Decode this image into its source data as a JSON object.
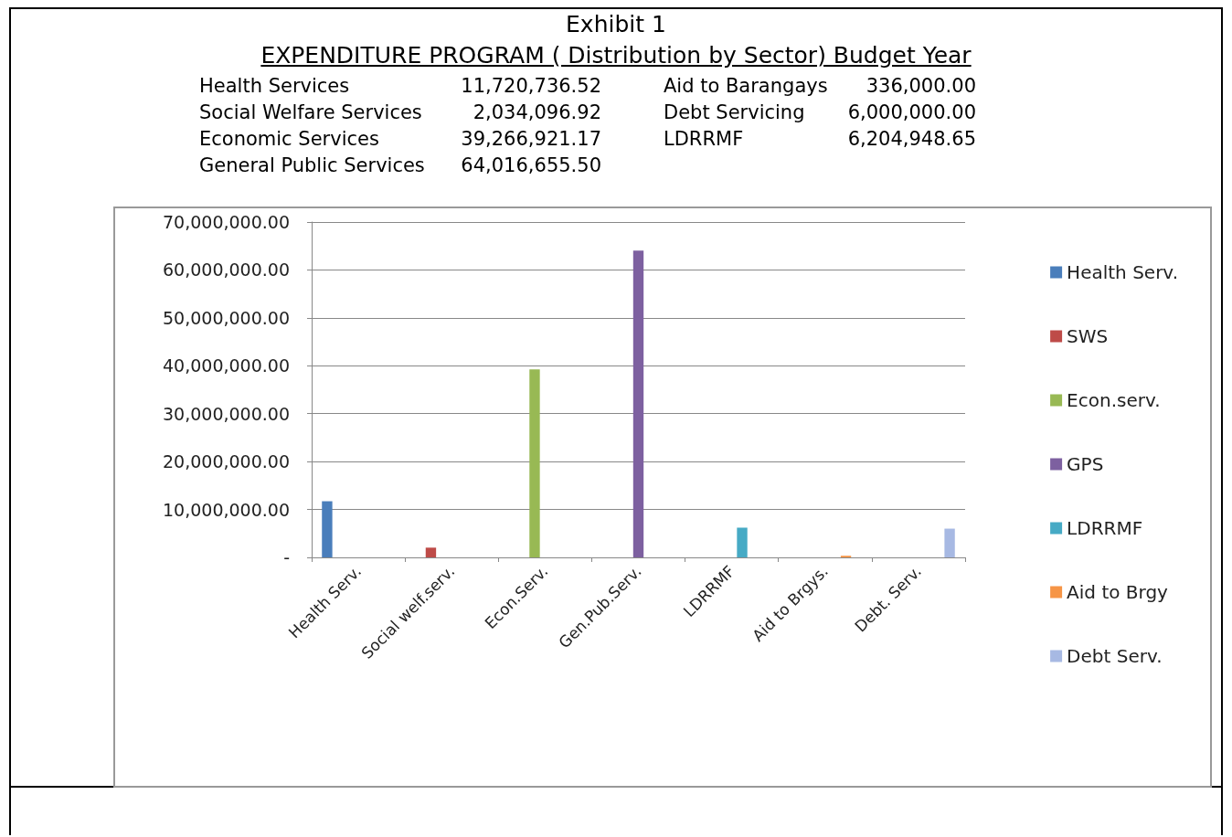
{
  "chart_data": {
    "type": "bar",
    "title": "Exhibit 1",
    "subtitle": "EXPENDITURE PROGRAM  ( Distribution  by  Sector)  Budget Year",
    "annotations": [
      "Health Services",
      "11,720,736.52",
      "Aid to Barangays",
      "336,000.00",
      "Social Welfare Services",
      "2,034,096.92",
      "Debt Servicing",
      "6,000,000.00",
      "Economic Services",
      "39,266,921.17",
      "LDRRMF",
      "6,204,948.65",
      "General Public Services",
      "64,016,655.50"
    ],
    "categories": [
      "Health Serv.",
      "Social welf.serv.",
      "Econ.Serv.",
      "Gen.Pub.Serv.",
      "LDRRMF",
      "Aid to Brgys.",
      "Debt. Serv."
    ],
    "series": [
      {
        "name": "Health Serv.",
        "color": "#4a7ebb",
        "values": [
          11720736.52,
          null,
          null,
          null,
          null,
          null,
          null
        ]
      },
      {
        "name": "SWS",
        "color": "#be4b48",
        "values": [
          null,
          2034096.92,
          null,
          null,
          null,
          null,
          null
        ]
      },
      {
        "name": "Econ.serv.",
        "color": "#98b954",
        "values": [
          null,
          null,
          39266921.17,
          null,
          null,
          null,
          null
        ]
      },
      {
        "name": "GPS",
        "color": "#7d60a0",
        "values": [
          null,
          null,
          null,
          64016655.5,
          null,
          null,
          null
        ]
      },
      {
        "name": "LDRRMF",
        "color": "#46aac5",
        "values": [
          null,
          null,
          null,
          null,
          6204948.65,
          null,
          null
        ]
      },
      {
        "name": "Aid to Brgy",
        "color": "#f69546",
        "values": [
          null,
          null,
          null,
          null,
          null,
          336000,
          null
        ]
      },
      {
        "name": "Debt Serv.",
        "color": "#a7b9e3",
        "values": [
          null,
          null,
          null,
          null,
          null,
          null,
          6000000
        ]
      }
    ],
    "ylim": [
      0,
      70000000
    ],
    "yticks": [
      {
        "value": 0,
        "label": "-"
      },
      {
        "value": 10000000,
        "label": "10,000,000.00"
      },
      {
        "value": 20000000,
        "label": "20,000,000.00"
      },
      {
        "value": 30000000,
        "label": "30,000,000.00"
      },
      {
        "value": 40000000,
        "label": "40,000,000.00"
      },
      {
        "value": 50000000,
        "label": "50,000,000.00"
      },
      {
        "value": 60000000,
        "label": "60,000,000.00"
      },
      {
        "value": 70000000,
        "label": "70,000,000.00"
      }
    ],
    "grid": "y",
    "legend": "right"
  }
}
